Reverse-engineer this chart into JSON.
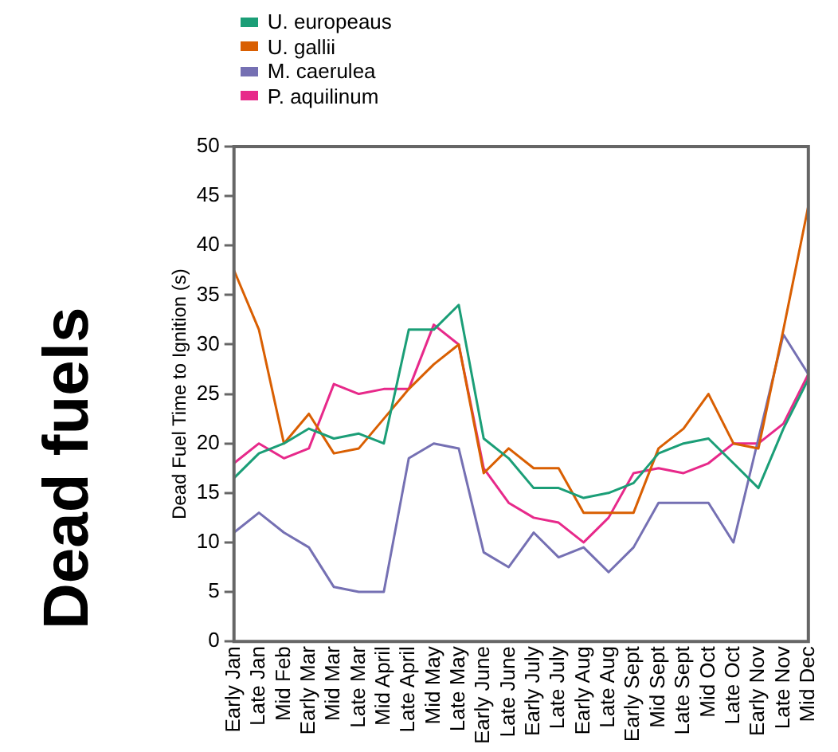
{
  "chart_data": {
    "type": "line",
    "ylabel": "Dead Fuel Time to Ignition (s)",
    "annotations": [
      "Dead fuels"
    ],
    "categories": [
      "Early Jan",
      "Late Jan",
      "Mid Feb",
      "Early Mar",
      "Mid Mar",
      "Late Mar",
      "Mid April",
      "Late April",
      "Mid May",
      "Late May",
      "Early June",
      "Late June",
      "Early July",
      "Late July",
      "Early Aug",
      "Late Aug",
      "Early Sept",
      "Mid Sept",
      "Late Sept",
      "Mid Oct",
      "Late Oct",
      "Early Nov",
      "Late Nov",
      "Mid Dec"
    ],
    "series": [
      {
        "name": "U. europeaus",
        "color": "#1b9e77",
        "values": [
          16.5,
          19,
          20,
          21.5,
          20.5,
          21,
          20,
          31.5,
          31.5,
          34,
          20.5,
          18.5,
          15.5,
          15.5,
          14.5,
          15,
          16,
          19,
          20,
          20.5,
          18,
          15.5,
          21.5,
          26.5
        ]
      },
      {
        "name": "U. gallii",
        "color": "#d95f02",
        "values": [
          37.5,
          31.5,
          20,
          23,
          19,
          19.5,
          22.5,
          25.5,
          28,
          30,
          17,
          19.5,
          17.5,
          17.5,
          13,
          13,
          13,
          19.5,
          21.5,
          25,
          20,
          19.5,
          31.5,
          44
        ]
      },
      {
        "name": "M. caerulea",
        "color": "#7570b3",
        "values": [
          11,
          13,
          11,
          9.5,
          5.5,
          5,
          5,
          18.5,
          20,
          19.5,
          9,
          7.5,
          11,
          8.5,
          9.5,
          7,
          9.5,
          14,
          14,
          14,
          10,
          20.5,
          31,
          27
        ]
      },
      {
        "name": "P. aquilinum",
        "color": "#e7298a",
        "values": [
          18,
          20,
          18.5,
          19.5,
          26,
          25,
          25.5,
          25.5,
          32,
          30,
          17.5,
          14,
          12.5,
          12,
          10,
          12.5,
          17,
          17.5,
          17,
          18,
          20,
          20,
          22,
          27
        ]
      }
    ],
    "ylim": [
      0,
      50
    ],
    "yticks": [
      0,
      5,
      10,
      15,
      20,
      25,
      30,
      35,
      40,
      45,
      50
    ],
    "grid": false,
    "legend": "top left",
    "marker": "none",
    "line_style": "solid"
  }
}
